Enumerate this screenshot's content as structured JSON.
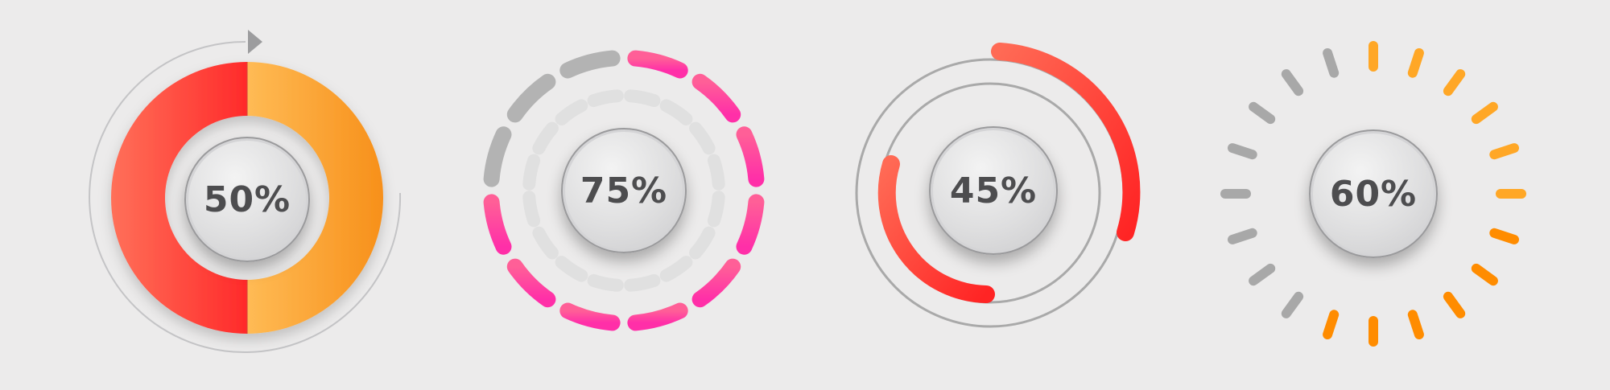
{
  "gauges": [
    {
      "label": "50%",
      "value": 0.5,
      "style": "donut-split",
      "colors": [
        "#f5574a",
        "#ffb347",
        "#f7931e"
      ]
    },
    {
      "label": "75%",
      "value": 0.75,
      "style": "dashed-ring",
      "colors": [
        "#ff4fa0",
        "#b3b3b3",
        "#e0e0e0"
      ]
    },
    {
      "label": "45%",
      "value": 0.45,
      "style": "arc-track",
      "colors": [
        "#ff6a55",
        "#ff2a2a",
        "#a9a9a9"
      ]
    },
    {
      "label": "60%",
      "value": 0.6,
      "style": "tick-ring",
      "colors": [
        "#ffa726",
        "#ff8c00",
        "#a8a8a8"
      ]
    }
  ]
}
